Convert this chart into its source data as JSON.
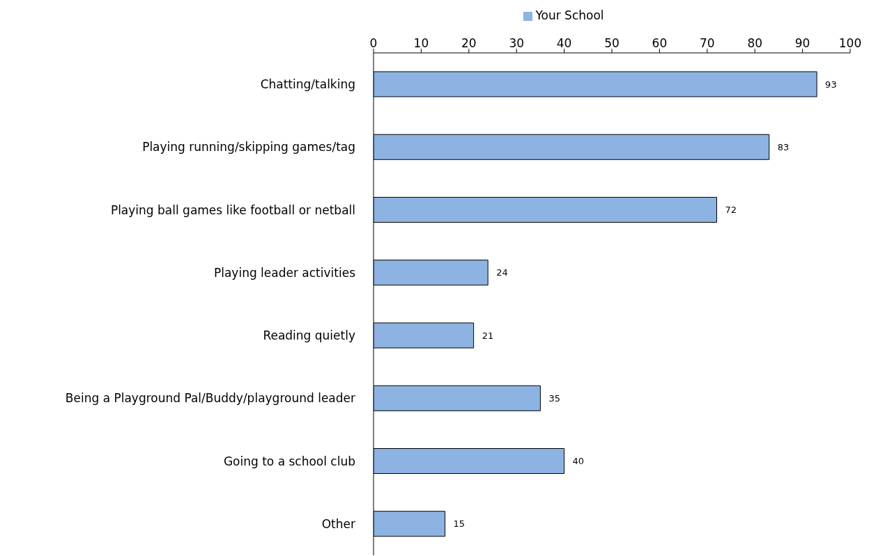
{
  "chart_data": {
    "type": "bar",
    "orientation": "horizontal",
    "categories": [
      "Chatting/talking",
      "Playing running/skipping games/tag",
      "Playing ball games like football or netball",
      "Playing leader activities",
      "Reading quietly",
      "Being a Playground Pal/Buddy/playground leader",
      "Going to a school club",
      "Other"
    ],
    "series": [
      {
        "name": "Your School",
        "color": "#8db3e2",
        "values": [
          93,
          83,
          72,
          24,
          21,
          35,
          40,
          15
        ]
      }
    ],
    "xlim": [
      0,
      100
    ],
    "xticks": [
      0,
      10,
      20,
      30,
      40,
      50,
      60,
      70,
      80,
      90,
      100
    ],
    "data_labels": true,
    "legend": "top"
  }
}
